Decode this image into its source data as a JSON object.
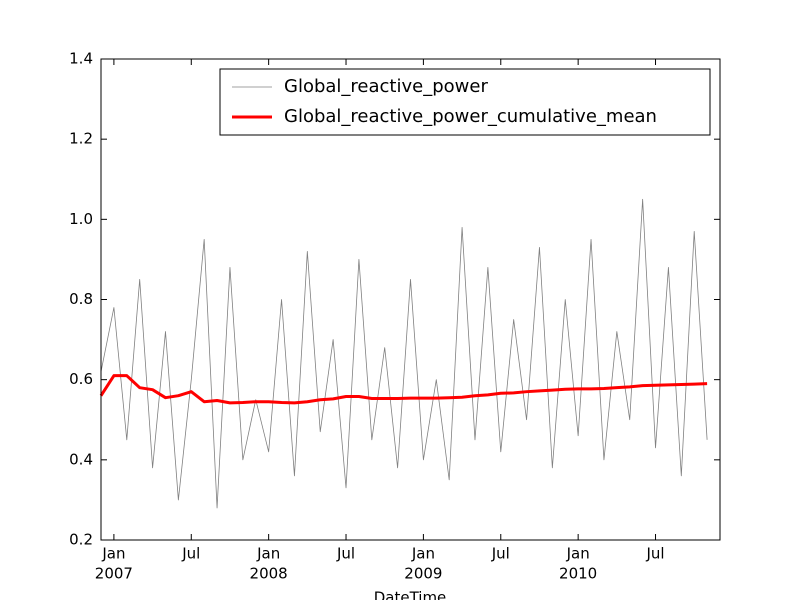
{
  "chart_data": {
    "type": "line",
    "xlabel": "DateTime",
    "x": [
      "2006-12",
      "2007-01",
      "2007-02",
      "2007-03",
      "2007-04",
      "2007-05",
      "2007-06",
      "2007-07",
      "2007-08",
      "2007-09",
      "2007-10",
      "2007-11",
      "2007-12",
      "2008-01",
      "2008-02",
      "2008-03",
      "2008-04",
      "2008-05",
      "2008-06",
      "2008-07",
      "2008-08",
      "2008-09",
      "2008-10",
      "2008-11",
      "2008-12",
      "2009-01",
      "2009-02",
      "2009-03",
      "2009-04",
      "2009-05",
      "2009-06",
      "2009-07",
      "2009-08",
      "2009-09",
      "2009-10",
      "2009-11",
      "2009-12",
      "2010-01",
      "2010-02",
      "2010-03",
      "2010-04",
      "2010-05",
      "2010-06",
      "2010-07",
      "2010-08",
      "2010-09",
      "2010-10",
      "2010-11"
    ],
    "series": [
      {
        "name": "Global_reactive_power",
        "color": "#808080",
        "width": 0.8,
        "values": [
          0.62,
          0.78,
          0.45,
          0.85,
          0.38,
          0.72,
          0.3,
          0.6,
          0.95,
          0.28,
          0.88,
          0.4,
          0.55,
          0.42,
          0.8,
          0.36,
          0.92,
          0.47,
          0.7,
          0.33,
          0.9,
          0.45,
          0.68,
          0.38,
          0.85,
          0.4,
          0.6,
          0.35,
          0.98,
          0.45,
          0.88,
          0.42,
          0.75,
          0.5,
          0.93,
          0.38,
          0.8,
          0.46,
          0.95,
          0.4,
          0.72,
          0.5,
          1.05,
          0.43,
          0.88,
          0.36,
          0.97,
          0.45
        ]
      },
      {
        "name": "Global_reactive_power_cumulative_mean",
        "color": "#ff0000",
        "width": 3,
        "values": [
          0.56,
          0.61,
          0.61,
          0.58,
          0.575,
          0.555,
          0.56,
          0.57,
          0.545,
          0.548,
          0.542,
          0.543,
          0.545,
          0.545,
          0.543,
          0.542,
          0.545,
          0.55,
          0.552,
          0.558,
          0.558,
          0.553,
          0.553,
          0.553,
          0.554,
          0.554,
          0.554,
          0.555,
          0.556,
          0.56,
          0.562,
          0.566,
          0.567,
          0.57,
          0.572,
          0.574,
          0.576,
          0.577,
          0.577,
          0.578,
          0.58,
          0.582,
          0.585,
          0.586,
          0.587,
          0.588,
          0.589,
          0.59
        ]
      }
    ],
    "xlim": [
      "2006-12",
      "2010-12"
    ],
    "xticks": [
      {
        "value": "2007-01",
        "label": "Jan",
        "sublabel": "2007"
      },
      {
        "value": "2007-07",
        "label": "Jul"
      },
      {
        "value": "2008-01",
        "label": "Jan",
        "sublabel": "2008"
      },
      {
        "value": "2008-07",
        "label": "Jul"
      },
      {
        "value": "2009-01",
        "label": "Jan",
        "sublabel": "2009"
      },
      {
        "value": "2009-07",
        "label": "Jul"
      },
      {
        "value": "2010-01",
        "label": "Jan",
        "sublabel": "2010"
      },
      {
        "value": "2010-07",
        "label": "Jul"
      }
    ],
    "ylim": [
      0.2,
      1.4
    ],
    "yticks": [
      0.2,
      0.4,
      0.6,
      0.8,
      {
        "value": 1,
        "label": "1.0"
      },
      1.2,
      1.4
    ],
    "legend": "upper right"
  }
}
